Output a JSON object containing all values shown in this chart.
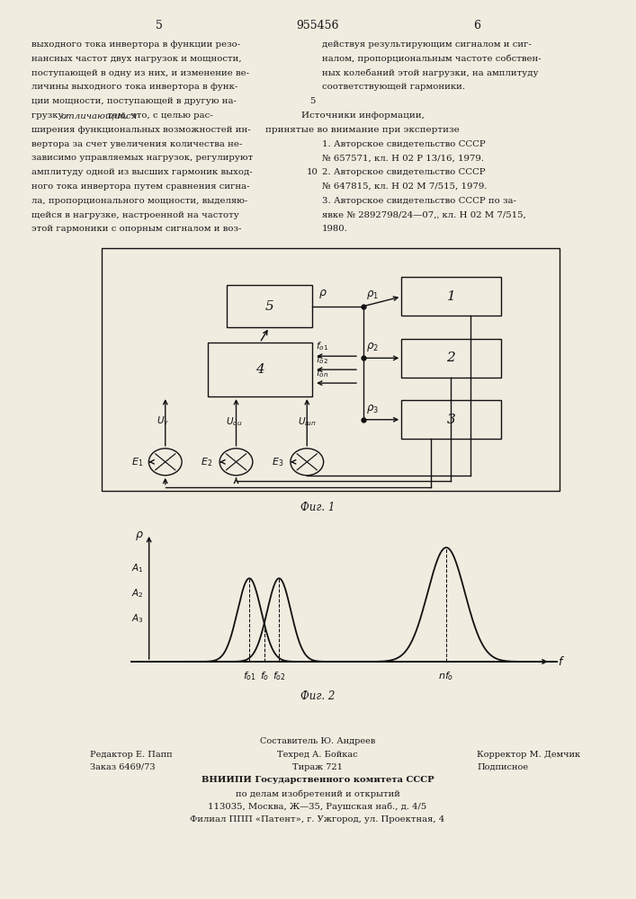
{
  "page_number_left": "5",
  "page_number_center": "955456",
  "page_number_right": "6",
  "bg_color": "#f0ece0",
  "text_color": "#1a1a1a",
  "left_text": [
    "выходного тока инвертора в функции резо-",
    "нансных частот двух нагрузок и мощности,",
    "поступающей в одну из них, и изменение ве-",
    "личины выходного тока инвертора в функ-",
    "ции мощности, поступающей в другую на-",
    "грузку, отличающийся тем, что, с целью рас-",
    "ширения функциональных возможностей ин-",
    "вертора за счет увеличения количества не-",
    "зависимо управляемых нагрузок, регулируют",
    "амплитуду одной из высших гармоник выход-",
    "ного тока инвертора путем сравнения сигна-",
    "ла, пропорционального мощности, выделяю-",
    "щейся в нагрузке, настроенной на частоту",
    "этой гармоники с опорным сигналом и воз-"
  ],
  "right_text": [
    "действуя результирующим сигналом и сиг-",
    "налом, пропорциональным частоте собствен-",
    "ных колебаний этой нагрузки, на амплитуду",
    "соответствующей гармоники."
  ],
  "sources_header": "Источники информации,",
  "sources_subheader": "принятые во внимание при экспертизе",
  "sources": [
    "1. Авторское свидетельство СССР",
    "№ 657571, кл. Н 02 Р 13/16, 1979.",
    "2. Авторское свидетельство СССР",
    "№ 647815, кл. Н 02 М 7/515, 1979.",
    "3. Авторское свидетельство СССР по за-",
    "явке № 2892798/24—07,ˌ кл. Н 02 М 7/515,",
    "1980."
  ],
  "fig1_label": "Фиг. 1",
  "fig2_label": "Фиг. 2"
}
